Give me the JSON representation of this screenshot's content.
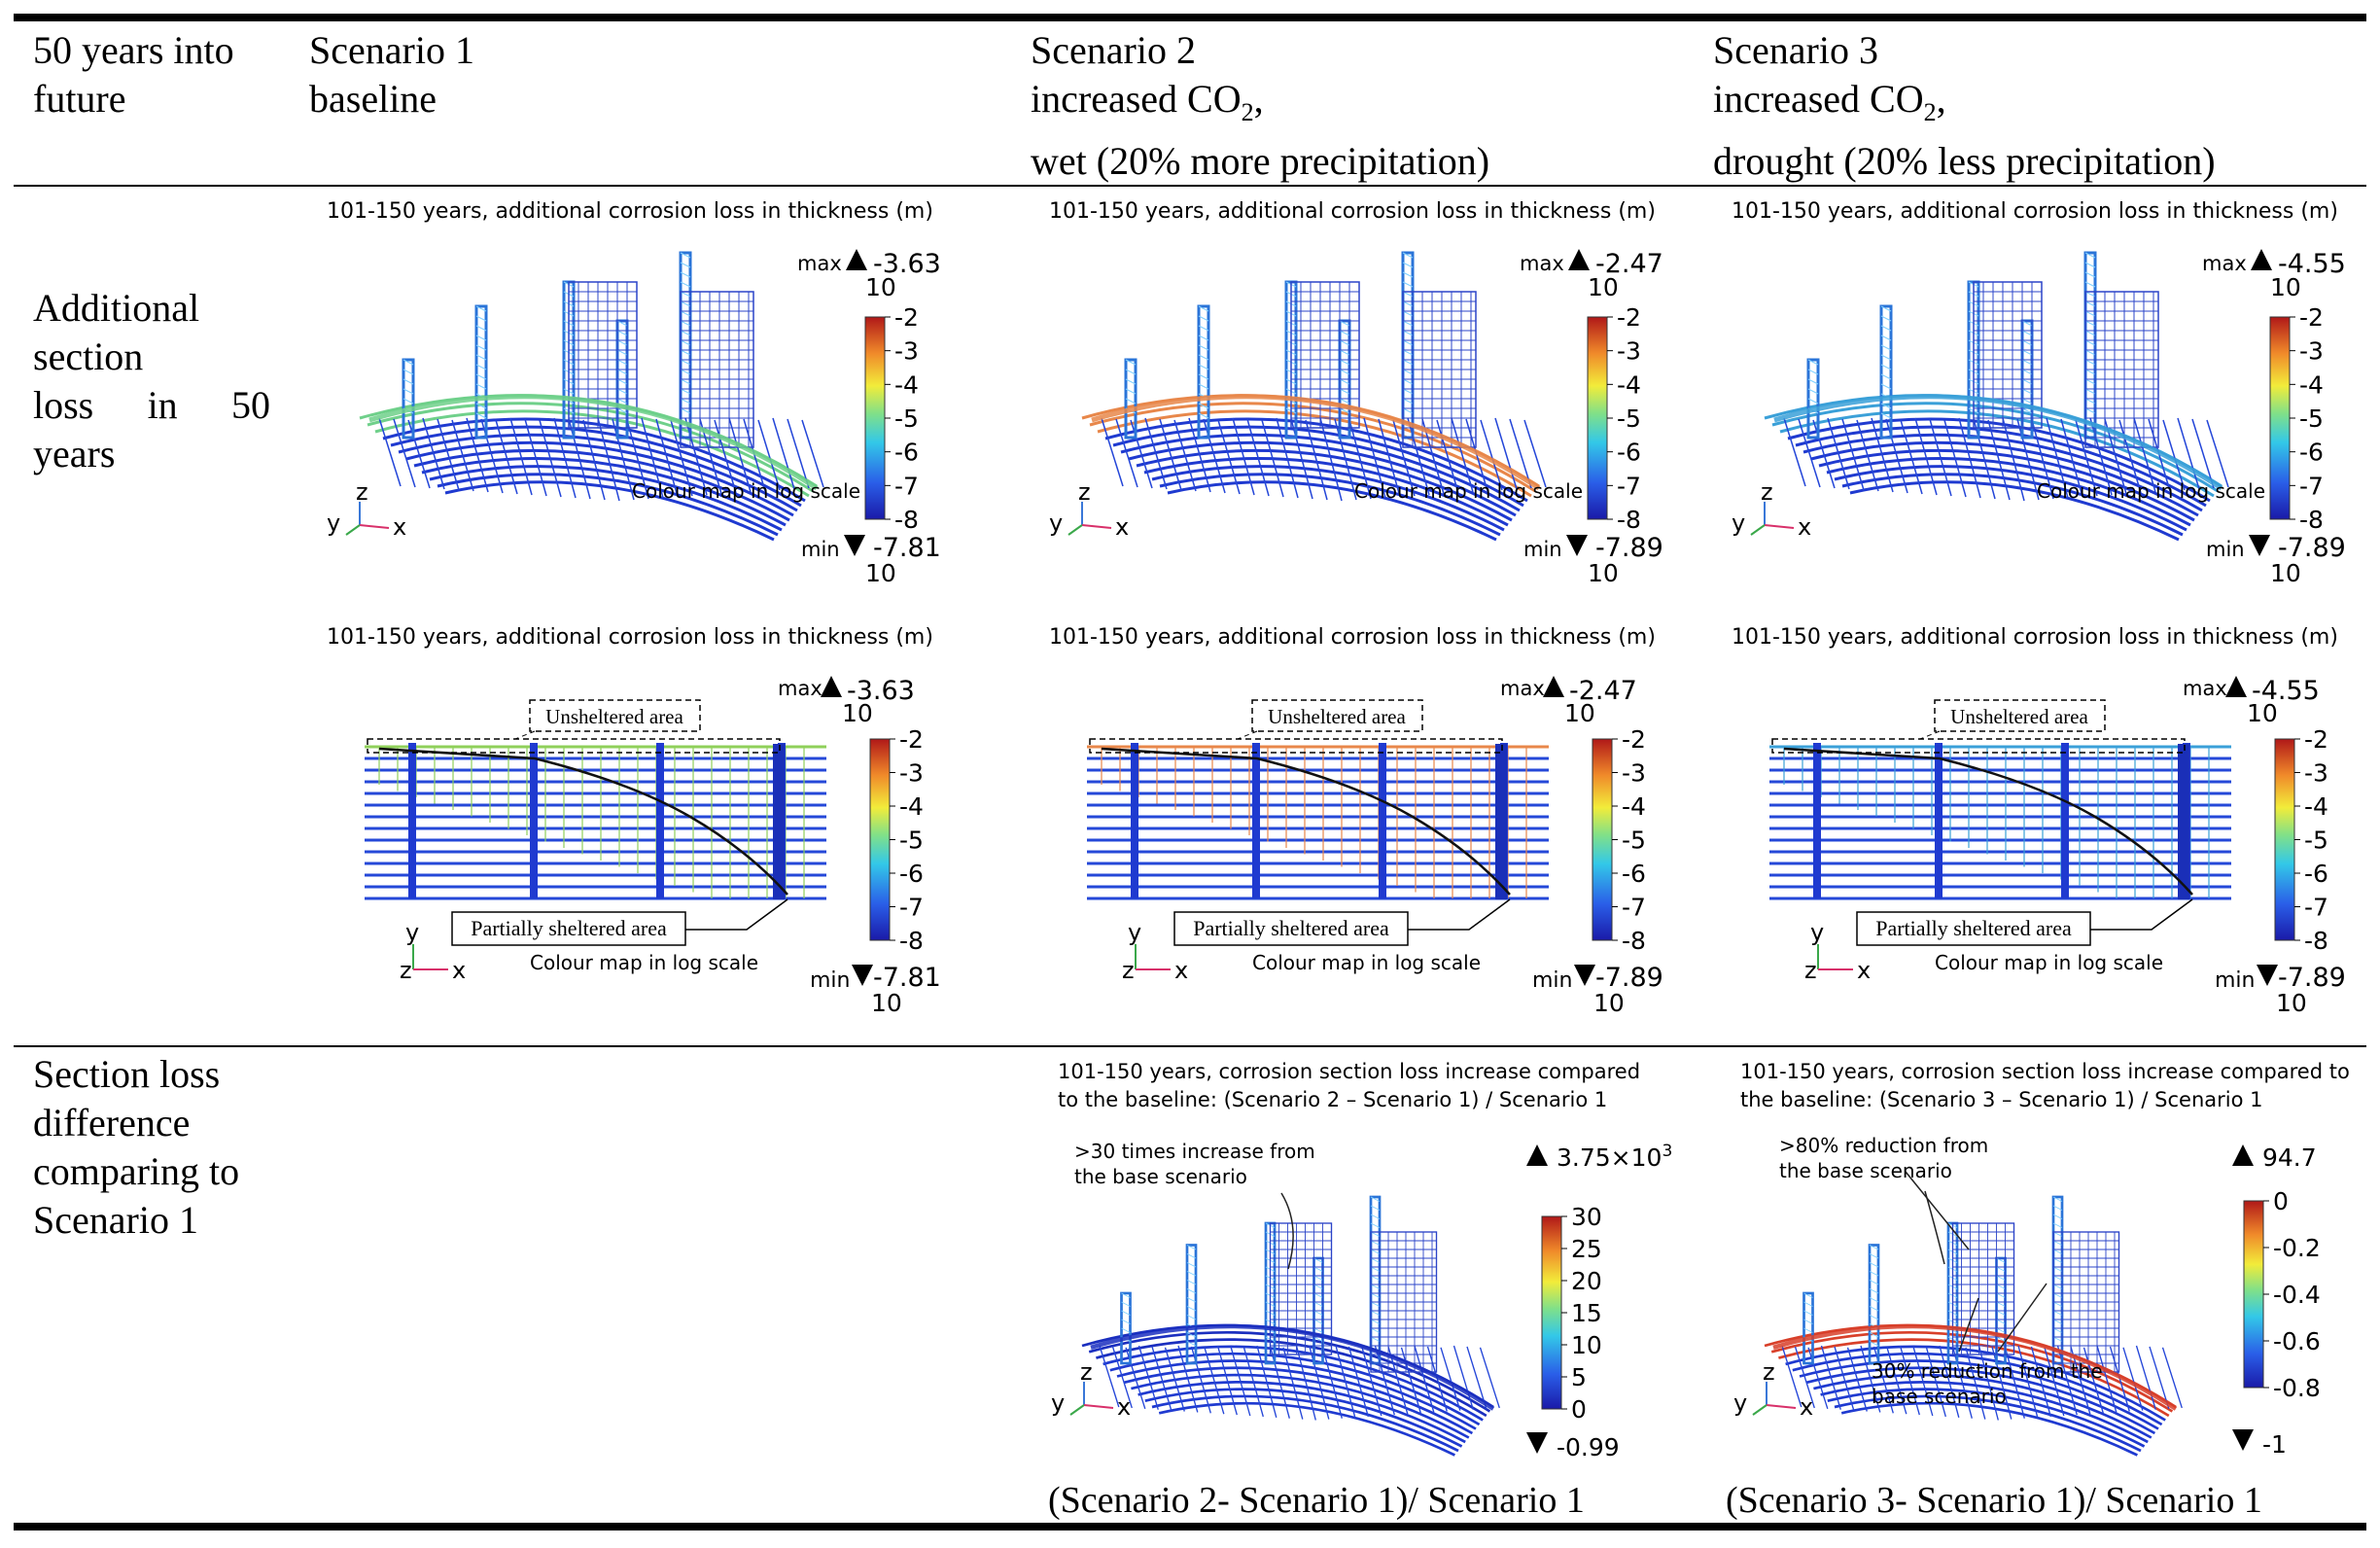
{
  "header": {
    "col0": "50 years into\nfuture",
    "col1": "Scenario 1\nbaseline",
    "col2_line1": "Scenario 2",
    "col2_line2": "increased CO",
    "col2_line3": "wet (20% more precipitation)",
    "col3_line1": "Scenario 3",
    "col3_line2": "increased CO",
    "col3_line3": "drought (20% less precipitation)",
    "co2_sub": "2",
    "co2_comma": ","
  },
  "rows": {
    "row1_label": "Additional section loss in 50 years",
    "row1_words": [
      "Additional",
      "section",
      "loss",
      "in",
      "50",
      "years"
    ],
    "row2_label_lines": [
      "Section loss",
      "difference",
      "comparing to",
      "Scenario 1"
    ]
  },
  "panels_iso": [
    {
      "caption": "101-150 years, additional corrosion loss in thickness (m)",
      "max_label": "max",
      "max_val": "-3.63",
      "base": "10",
      "min_label": "min",
      "min_val": "-7.81",
      "ticks": [
        "-2",
        "-3",
        "-4",
        "-5",
        "-6",
        "-7",
        "-8"
      ],
      "note": "Colour map in log scale",
      "axes": {
        "y": "y",
        "z": "z",
        "x": "x"
      },
      "tint": "#6fd08a"
    },
    {
      "caption": "101-150 years, additional corrosion loss in thickness (m)",
      "max_label": "max",
      "max_val": "-2.47",
      "base": "10",
      "min_label": "min",
      "min_val": "-7.89",
      "ticks": [
        "-2",
        "-3",
        "-4",
        "-5",
        "-6",
        "-7",
        "-8"
      ],
      "note": "Colour map in log scale",
      "axes": {
        "y": "y",
        "z": "z",
        "x": "x"
      },
      "tint": "#e8874a"
    },
    {
      "caption": "101-150 years, additional corrosion loss in thickness (m)",
      "max_label": "max",
      "max_val": "-4.55",
      "base": "10",
      "min_label": "min",
      "min_val": "-7.89",
      "ticks": [
        "-2",
        "-3",
        "-4",
        "-5",
        "-6",
        "-7",
        "-8"
      ],
      "note": "Colour map in log scale",
      "axes": {
        "y": "y",
        "z": "z",
        "x": "x"
      },
      "tint": "#3aa0d8"
    }
  ],
  "panels_plan": [
    {
      "caption": "101-150 years, additional corrosion loss in thickness (m)",
      "max_label": "max",
      "max_val": "-3.63",
      "base": "10",
      "min_label": "min",
      "min_val": "-7.81",
      "ticks": [
        "-2",
        "-3",
        "-4",
        "-5",
        "-6",
        "-7",
        "-8"
      ],
      "note": "Colour map in log scale",
      "unsheltered": "Unsheltered area",
      "partial": "Partially sheltered area",
      "axes": {
        "y": "y",
        "z": "z",
        "x": "x"
      },
      "tint": "#8fd05a"
    },
    {
      "caption": "101-150 years, additional corrosion loss in thickness (m)",
      "max_label": "max",
      "max_val": "-2.47",
      "base": "10",
      "min_label": "min",
      "min_val": "-7.89",
      "ticks": [
        "-2",
        "-3",
        "-4",
        "-5",
        "-6",
        "-7",
        "-8"
      ],
      "note": "Colour map in log scale",
      "unsheltered": "Unsheltered area",
      "partial": "Partially sheltered area",
      "axes": {
        "y": "y",
        "z": "z",
        "x": "x"
      },
      "tint": "#e8874a"
    },
    {
      "caption": "101-150 years, additional corrosion loss in thickness (m)",
      "max_label": "max",
      "max_val": "-4.55",
      "base": "10",
      "min_label": "min",
      "min_val": "-7.89",
      "ticks": [
        "-2",
        "-3",
        "-4",
        "-5",
        "-6",
        "-7",
        "-8"
      ],
      "note": "Colour map in log scale",
      "unsheltered": "Unsheltered area",
      "partial": "Partially sheltered area",
      "axes": {
        "y": "y",
        "z": "z",
        "x": "x"
      },
      "tint": "#3aa0d8"
    }
  ],
  "panels_diff": [
    {
      "caption": "101-150 years, corrosion section loss increase compared\nto the baseline: (Scenario 2 – Scenario 1) / Scenario 1",
      "max_val": "3.75×10",
      "max_exp": "3",
      "min_val": "-0.99",
      "ticks": [
        "30",
        "25",
        "20",
        "15",
        "10",
        "5",
        "0"
      ],
      "annot1": ">30 times increase from\nthe base scenario",
      "annot2": "",
      "axes": {
        "y": "y",
        "z": "z",
        "x": "x"
      },
      "tint": "#1b2fbf",
      "bottom": "(Scenario 2- Scenario 1)/ Scenario 1"
    },
    {
      "caption": "101-150 years, corrosion section loss increase compared to\nthe baseline: (Scenario 3 – Scenario 1) / Scenario 1",
      "max_val": "94.7",
      "max_exp": "",
      "min_val": "-1",
      "ticks": [
        "0",
        "-0.2",
        "-0.4",
        "-0.6",
        "-0.8"
      ],
      "annot1": ">80% reduction from\nthe base scenario",
      "annot2": "30% reduction from the\nbase scenario",
      "axes": {
        "y": "y",
        "z": "z",
        "x": "x"
      },
      "tint": "#d8402a",
      "bottom": "(Scenario 3- Scenario 1)/ Scenario 1"
    }
  ]
}
